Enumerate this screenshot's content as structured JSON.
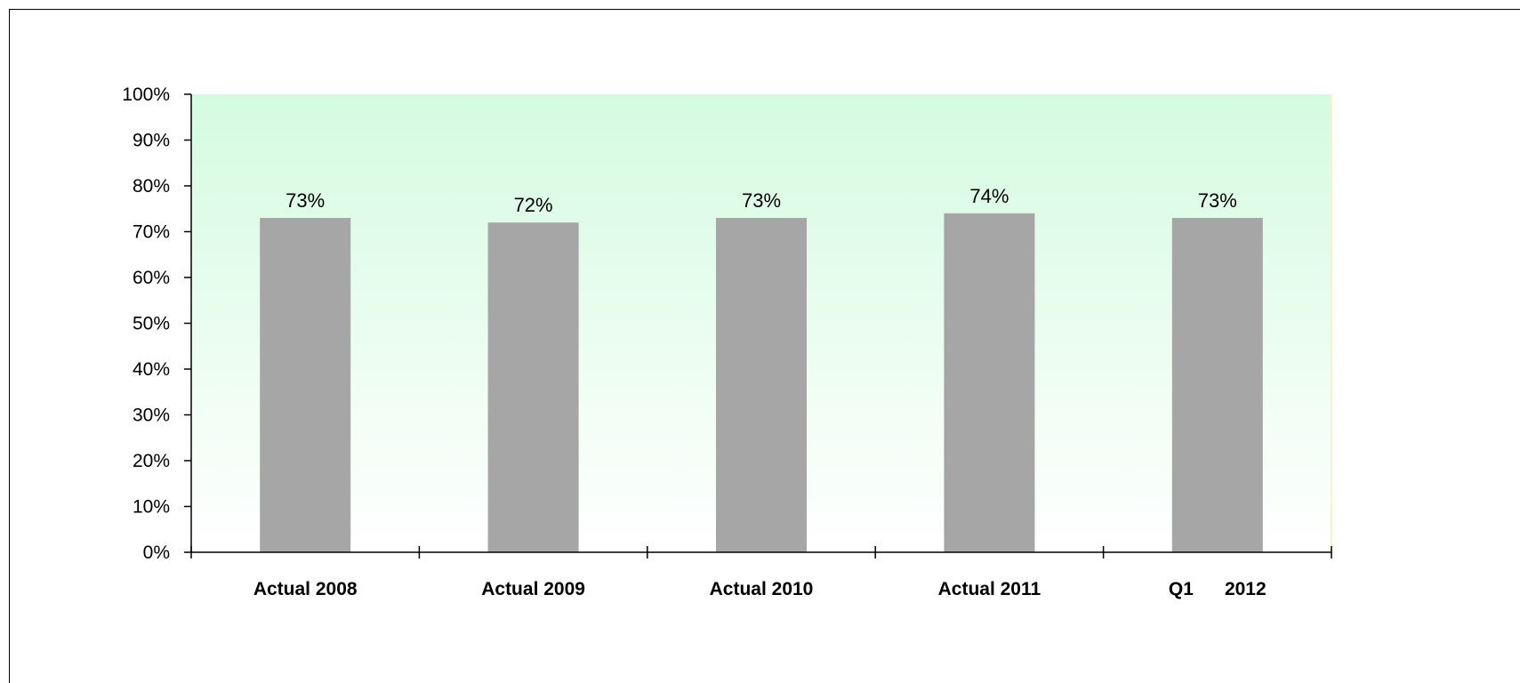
{
  "chart_data": {
    "type": "bar",
    "categories": [
      "Actual 2008",
      "Actual 2009",
      "Actual 2010",
      "Actual 2011",
      "Q1      2012"
    ],
    "values": [
      73,
      72,
      73,
      74,
      73
    ],
    "data_labels": [
      "73%",
      "72%",
      "73%",
      "74%",
      "73%"
    ],
    "title": "",
    "xlabel": "",
    "ylabel": "",
    "ylim": [
      0,
      100
    ],
    "y_ticks": [
      0,
      10,
      20,
      30,
      40,
      50,
      60,
      70,
      80,
      90,
      100
    ],
    "y_tick_labels": [
      "0%",
      "10%",
      "20%",
      "30%",
      "40%",
      "50%",
      "60%",
      "70%",
      "80%",
      "90%",
      "100%"
    ],
    "legend": "none",
    "grid": false,
    "bar_color": "#a6a6a6",
    "plot_background_top": "#d4fbe0",
    "plot_background_bottom": "#ffffff"
  }
}
